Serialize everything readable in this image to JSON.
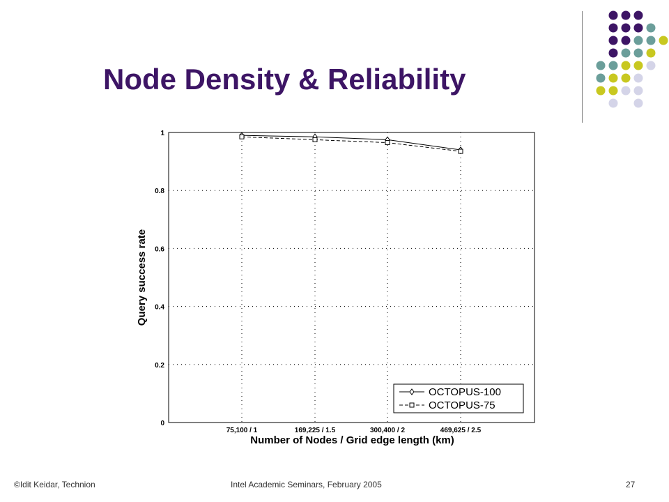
{
  "slide": {
    "title": "Node Density & Reliability"
  },
  "footer": {
    "left": "©Idit Keidar, Technion",
    "center": "Intel Academic Seminars, February 2005",
    "page": "27"
  },
  "colors": {
    "title": "#3d1565",
    "dot_purple": "#3d1565",
    "dot_teal": "#6b9e9a",
    "dot_yellow": "#c8c820",
    "dot_lavender": "#d4d4e8"
  },
  "chart_data": {
    "type": "line",
    "title": "",
    "xlabel": "Number of Nodes / Grid edge length (km)",
    "ylabel": "Query success rate",
    "categories": [
      "75,100 / 1",
      "169,225 / 1.5",
      "300,400 / 2",
      "469,625 / 2.5"
    ],
    "y_ticks": [
      "0",
      "0.2",
      "0.4",
      "0.6",
      "0.8",
      "1"
    ],
    "ylim": [
      0,
      1
    ],
    "grid": true,
    "legend_position": "bottom-right",
    "series": [
      {
        "name": "OCTOPUS-100",
        "values": [
          0.99,
          0.985,
          0.975,
          0.94
        ],
        "marker": "diamond",
        "line": "solid"
      },
      {
        "name": "OCTOPUS-75",
        "values": [
          0.985,
          0.975,
          0.965,
          0.935
        ],
        "marker": "square",
        "line": "dashed"
      }
    ]
  }
}
